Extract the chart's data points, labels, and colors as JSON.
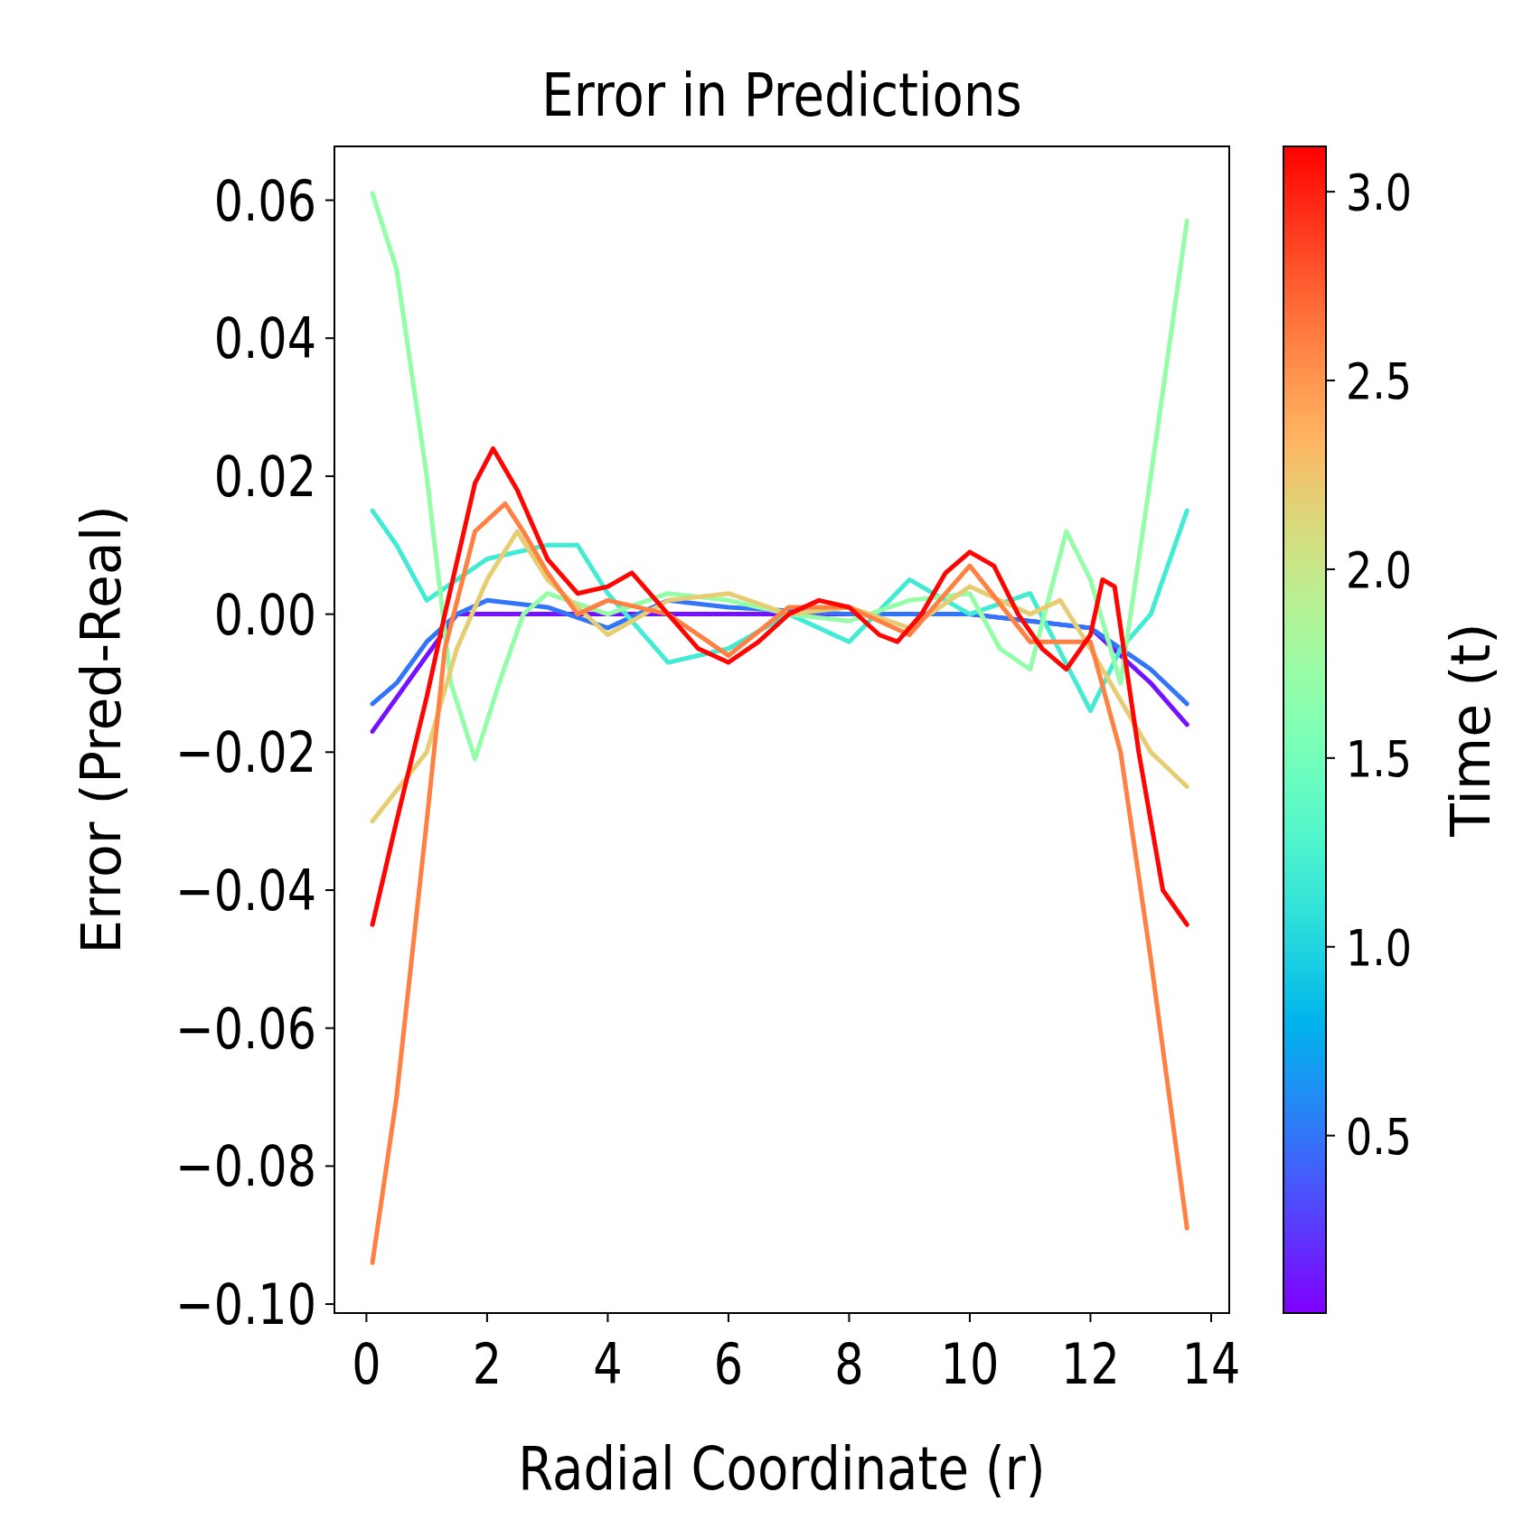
{
  "chart_data": {
    "type": "line",
    "title": "Error in Predictions",
    "xlabel": "Radial Coordinate (r)",
    "ylabel": "Error (Pred-Real)",
    "clabel": "Time (t)",
    "xlim": [
      -0.53,
      14.3
    ],
    "ylim": [
      -0.1013,
      0.0678
    ],
    "xticks": [
      0,
      2,
      4,
      6,
      8,
      10,
      12,
      14
    ],
    "yticks": [
      {
        "value": -0.1,
        "label": "−0.10"
      },
      {
        "value": -0.08,
        "label": "−0.08"
      },
      {
        "value": -0.06,
        "label": "−0.06"
      },
      {
        "value": -0.04,
        "label": "−0.04"
      },
      {
        "value": -0.02,
        "label": "−0.02"
      },
      {
        "value": 0,
        "label": "0.00"
      },
      {
        "value": 0.02,
        "label": "0.02"
      },
      {
        "value": 0.04,
        "label": "0.04"
      },
      {
        "value": 0.06,
        "label": "0.06"
      }
    ],
    "clim": [
      0.03,
      3.12
    ],
    "cticks": [
      {
        "value": 0.5,
        "label": "0.5"
      },
      {
        "value": 1,
        "label": "1.0"
      },
      {
        "value": 1.5,
        "label": "1.5"
      },
      {
        "value": 2,
        "label": "2.0"
      },
      {
        "value": 2.5,
        "label": "2.5"
      },
      {
        "value": 3,
        "label": "3.0"
      }
    ],
    "grid": false,
    "series": [
      {
        "color": "#7412ff",
        "x": [
          0.1,
          1.0,
          1.5,
          3.0,
          6.0,
          10.0,
          12.0,
          13.0,
          13.6
        ],
        "values": [
          -0.017,
          -0.006,
          0.0,
          0.0,
          0.0,
          0.0,
          -0.002,
          -0.01,
          -0.016
        ]
      },
      {
        "color": "#3275f8",
        "x": [
          0.1,
          0.5,
          1.0,
          1.5,
          2.0,
          3.0,
          4.0,
          5.0,
          6.0,
          8.0,
          10.0,
          12.0,
          13.0,
          13.6
        ],
        "values": [
          -0.013,
          -0.01,
          -0.004,
          0.0,
          0.002,
          0.001,
          -0.002,
          0.002,
          0.001,
          0.0,
          0.0,
          -0.002,
          -0.008,
          -0.013
        ]
      },
      {
        "color": "#42ecd4",
        "x": [
          0.1,
          0.5,
          1.0,
          1.5,
          2.0,
          3.0,
          3.5,
          4.0,
          5.0,
          6.0,
          7.0,
          8.0,
          9.0,
          10.0,
          11.0,
          12.0,
          12.5,
          13.0,
          13.6
        ],
        "values": [
          0.015,
          0.01,
          0.002,
          0.005,
          0.008,
          0.01,
          0.01,
          0.003,
          -0.007,
          -0.005,
          0.0,
          -0.004,
          0.005,
          0.0,
          0.003,
          -0.014,
          -0.005,
          0.0,
          0.015
        ]
      },
      {
        "color": "#94fda8",
        "x": [
          0.1,
          0.5,
          1.0,
          1.4,
          1.8,
          2.2,
          2.6,
          3.0,
          4.0,
          5.0,
          6.0,
          7.0,
          8.0,
          9.0,
          10.0,
          10.5,
          11.0,
          11.6,
          12.0,
          12.5,
          13.0,
          13.6
        ],
        "values": [
          0.061,
          0.05,
          0.02,
          -0.01,
          -0.021,
          -0.01,
          0.0,
          0.003,
          0.0,
          0.003,
          0.002,
          0.0,
          -0.001,
          0.002,
          0.003,
          -0.005,
          -0.008,
          0.012,
          0.005,
          -0.01,
          0.02,
          0.057
        ]
      },
      {
        "color": "#e6cd73",
        "x": [
          0.1,
          1.0,
          1.5,
          2.0,
          2.5,
          3.0,
          4.0,
          5.0,
          6.0,
          7.0,
          8.0,
          9.0,
          10.0,
          11.0,
          11.5,
          12.0,
          13.0,
          13.6
        ],
        "values": [
          -0.03,
          -0.02,
          -0.005,
          0.005,
          0.012,
          0.005,
          -0.003,
          0.002,
          0.003,
          0.0,
          0.001,
          -0.002,
          0.004,
          0.0,
          0.002,
          -0.005,
          -0.02,
          -0.025
        ]
      },
      {
        "color": "#ff8042",
        "x": [
          0.1,
          0.5,
          1.0,
          1.3,
          1.8,
          2.3,
          2.6,
          3.0,
          3.5,
          4.0,
          5.0,
          6.0,
          7.0,
          8.0,
          9.0,
          10.0,
          11.0,
          12.0,
          12.5,
          13.0,
          13.6
        ],
        "values": [
          -0.094,
          -0.07,
          -0.03,
          -0.005,
          0.012,
          0.016,
          0.012,
          0.006,
          0.0,
          0.002,
          0.0,
          -0.006,
          0.001,
          0.001,
          -0.003,
          0.007,
          -0.004,
          -0.004,
          -0.02,
          -0.05,
          -0.089
        ]
      },
      {
        "color": "#ff0502",
        "x": [
          0.1,
          0.5,
          1.0,
          1.3,
          1.8,
          2.1,
          2.5,
          3.0,
          3.5,
          4.0,
          4.4,
          5.0,
          5.5,
          6.0,
          6.5,
          7.0,
          7.5,
          8.0,
          8.5,
          8.8,
          9.2,
          9.6,
          10.0,
          10.4,
          10.8,
          11.2,
          11.6,
          12.0,
          12.2,
          12.4,
          12.8,
          13.2,
          13.6
        ],
        "values": [
          -0.045,
          -0.03,
          -0.012,
          0.0,
          0.019,
          0.024,
          0.018,
          0.008,
          0.003,
          0.004,
          0.006,
          0.0,
          -0.005,
          -0.007,
          -0.004,
          0.0,
          0.002,
          0.001,
          -0.003,
          -0.004,
          0.0,
          0.006,
          0.009,
          0.007,
          0.0,
          -0.005,
          -0.008,
          -0.003,
          0.005,
          0.004,
          -0.02,
          -0.04,
          -0.045
        ]
      }
    ]
  }
}
